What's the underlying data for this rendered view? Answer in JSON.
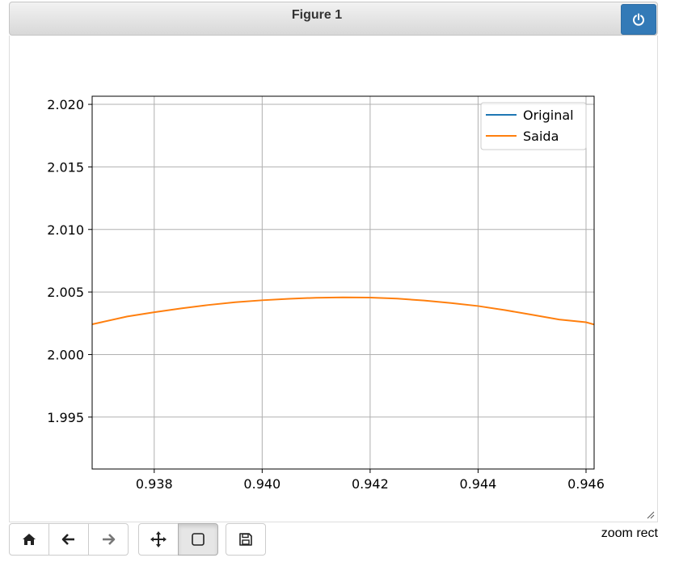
{
  "window": {
    "title": "Figure 1"
  },
  "toolbar": {
    "status_text": "zoom rect",
    "buttons": [
      {
        "name": "home",
        "icon": "home-icon"
      },
      {
        "name": "back",
        "icon": "arrow-left-icon"
      },
      {
        "name": "forward",
        "icon": "arrow-right-icon"
      },
      {
        "name": "pan",
        "icon": "move-icon"
      },
      {
        "name": "zoom",
        "icon": "square-icon",
        "active": true
      },
      {
        "name": "save",
        "icon": "floppy-disk-icon"
      }
    ]
  },
  "chart_data": {
    "type": "line",
    "title": "",
    "xlabel": "",
    "ylabel": "",
    "xlim": [
      0.93685,
      0.94615
    ],
    "ylim": [
      1.99085,
      2.02065
    ],
    "xticks": [
      0.938,
      0.94,
      0.942,
      0.944,
      0.946
    ],
    "xtick_labels": [
      "0.938",
      "0.940",
      "0.942",
      "0.944",
      "0.946"
    ],
    "yticks": [
      1.995,
      2.0,
      2.005,
      2.01,
      2.015,
      2.02
    ],
    "ytick_labels": [
      "1.995",
      "2.000",
      "2.005",
      "2.010",
      "2.015",
      "2.020"
    ],
    "grid": true,
    "legend_position": "top-right",
    "series": [
      {
        "name": "Original",
        "color": "#1f77b4",
        "x": [],
        "y": []
      },
      {
        "name": "Saida",
        "color": "#ff7f0e",
        "x": [
          0.93685,
          0.9375,
          0.938,
          0.9385,
          0.939,
          0.9395,
          0.94,
          0.9405,
          0.941,
          0.9415,
          0.942,
          0.9425,
          0.943,
          0.9435,
          0.944,
          0.9445,
          0.945,
          0.9455,
          0.946,
          0.94615
        ],
        "y": [
          2.00242,
          2.00304,
          2.00338,
          2.00369,
          2.00396,
          2.00418,
          2.00434,
          2.00446,
          2.00454,
          2.00457,
          2.00455,
          2.00447,
          2.00432,
          2.00412,
          2.00388,
          2.00355,
          2.00318,
          2.0028,
          2.00258,
          2.0024
        ]
      }
    ]
  }
}
